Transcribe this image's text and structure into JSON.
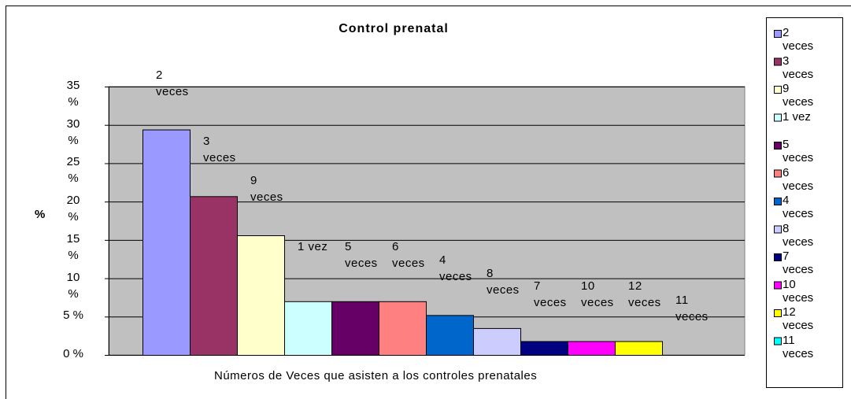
{
  "chart_data": {
    "type": "bar",
    "title": "Control prenatal",
    "y_label": "%",
    "x_label": "Números de Veces que asisten a los controles prenatales",
    "categories": [
      "2 veces",
      "3 veces",
      "9 veces",
      "1 vez",
      "5 veces",
      "6 veces",
      "4 veces",
      "8 veces",
      "7 veces",
      "10 veces",
      "12 veces",
      "11 veces"
    ],
    "values": [
      29.4,
      20.7,
      15.6,
      7.0,
      7.0,
      7.0,
      5.2,
      3.5,
      1.8,
      1.8,
      1.8,
      0
    ],
    "colors": [
      "#9999ff",
      "#993366",
      "#ffffcc",
      "#ccffff",
      "#660066",
      "#ff8080",
      "#0066cc",
      "#ccccff",
      "#000080",
      "#ff00ff",
      "#ffff00",
      "#00ffff"
    ],
    "ylim": [
      0,
      35
    ],
    "yticks": [
      {
        "value": 0,
        "label": "0 %"
      },
      {
        "value": 5,
        "label": "5 %"
      },
      {
        "value": 10,
        "label": "10 %"
      },
      {
        "value": 15,
        "label": "15 %"
      },
      {
        "value": 20,
        "label": "20 %"
      },
      {
        "value": 25,
        "label": "25 %"
      },
      {
        "value": 30,
        "label": "30 %"
      },
      {
        "value": 35,
        "label": "35 %"
      }
    ],
    "grid": true,
    "legend": "right"
  }
}
